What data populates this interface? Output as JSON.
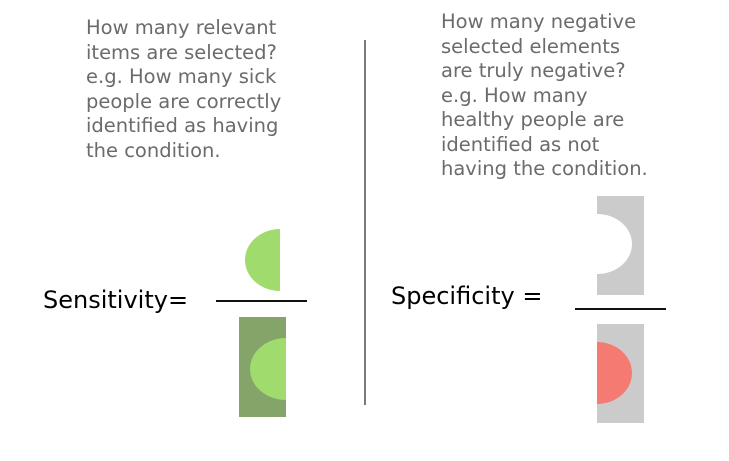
{
  "left": {
    "question": "How many relevant\nitems are selected?\ne.g. How many sick\npeople are correctly\nidentified as having\nthe condition.",
    "term": "Sensitivity="
  },
  "right": {
    "question": "How many negative\nselected elements\nare truly negative?\ne.g. How many\nhealthy people are\nidentified as not\nhaving the condition.",
    "term": "Specificity ="
  },
  "colors": {
    "true_positive_green": "#a0db6e",
    "positive_box_green": "#85a46a",
    "negative_box_grey": "#cbcbcb",
    "false_positive_red": "#f57a72",
    "true_negative_white": "#ffffff"
  }
}
